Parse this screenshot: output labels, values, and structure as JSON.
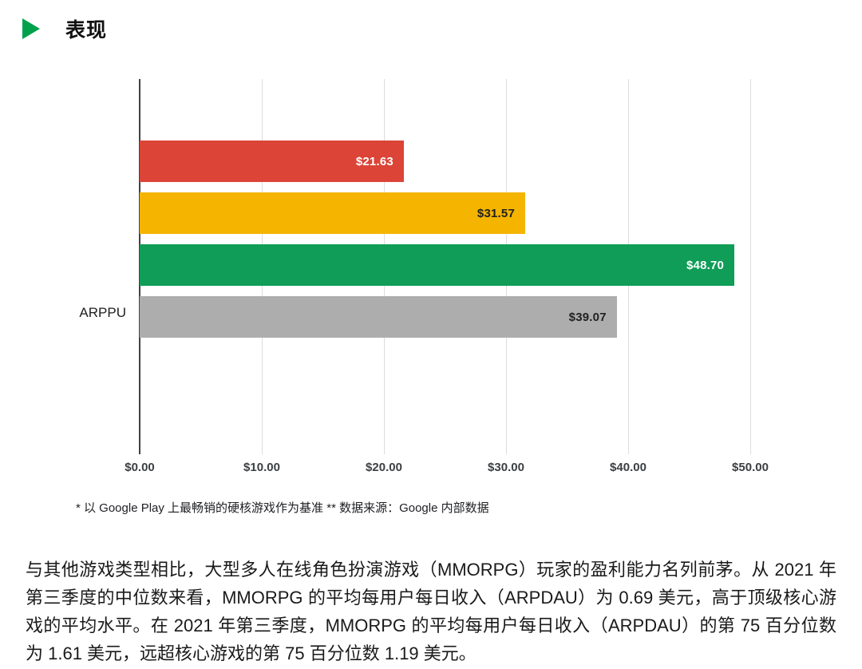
{
  "header": {
    "title": "表现",
    "icon_color": "#00A14B"
  },
  "chart_data": {
    "type": "bar",
    "orientation": "horizontal",
    "title": "",
    "category_label": "ARPPU",
    "series": [
      {
        "name": "red",
        "value": 21.63,
        "label": "$21.63",
        "color": "#DB4437",
        "label_color": "#FFFFFF"
      },
      {
        "name": "yellow",
        "value": 31.57,
        "label": "$31.57",
        "color": "#F4B400",
        "label_color": "#212121"
      },
      {
        "name": "green",
        "value": 48.7,
        "label": "$48.70",
        "color": "#0F9D58",
        "label_color": "#FFFFFF"
      },
      {
        "name": "gray",
        "value": 39.07,
        "label": "$39.07",
        "color": "#ADADAD",
        "label_color": "#212121"
      }
    ],
    "x_ticks": [
      {
        "value": 0,
        "label": "$0.00"
      },
      {
        "value": 10,
        "label": "$10.00"
      },
      {
        "value": 20,
        "label": "$20.00"
      },
      {
        "value": 30,
        "label": "$30.00"
      },
      {
        "value": 40,
        "label": "$40.00"
      },
      {
        "value": 50,
        "label": "$50.00"
      }
    ],
    "xlim": [
      0,
      56.5
    ],
    "grid": true,
    "legend": false
  },
  "footnote": "* 以 Google Play 上最畅销的硬核游戏作为基准 ** 数据来源：Google 内部数据",
  "paragraph": "与其他游戏类型相比，大型多人在线角色扮演游戏（MMORPG）玩家的盈利能力名列前茅。从 2021 年第三季度的中位数来看，MMORPG 的平均每用户每日收入（ARPDAU）为 0.69 美元，高于顶级核心游戏的平均水平。在 2021 年第三季度，MMORPG 的平均每用户每日收入（ARPDAU）的第 75 百分位数为 1.61 美元，远超核心游戏的第 75 百分位数 1.19 美元。"
}
